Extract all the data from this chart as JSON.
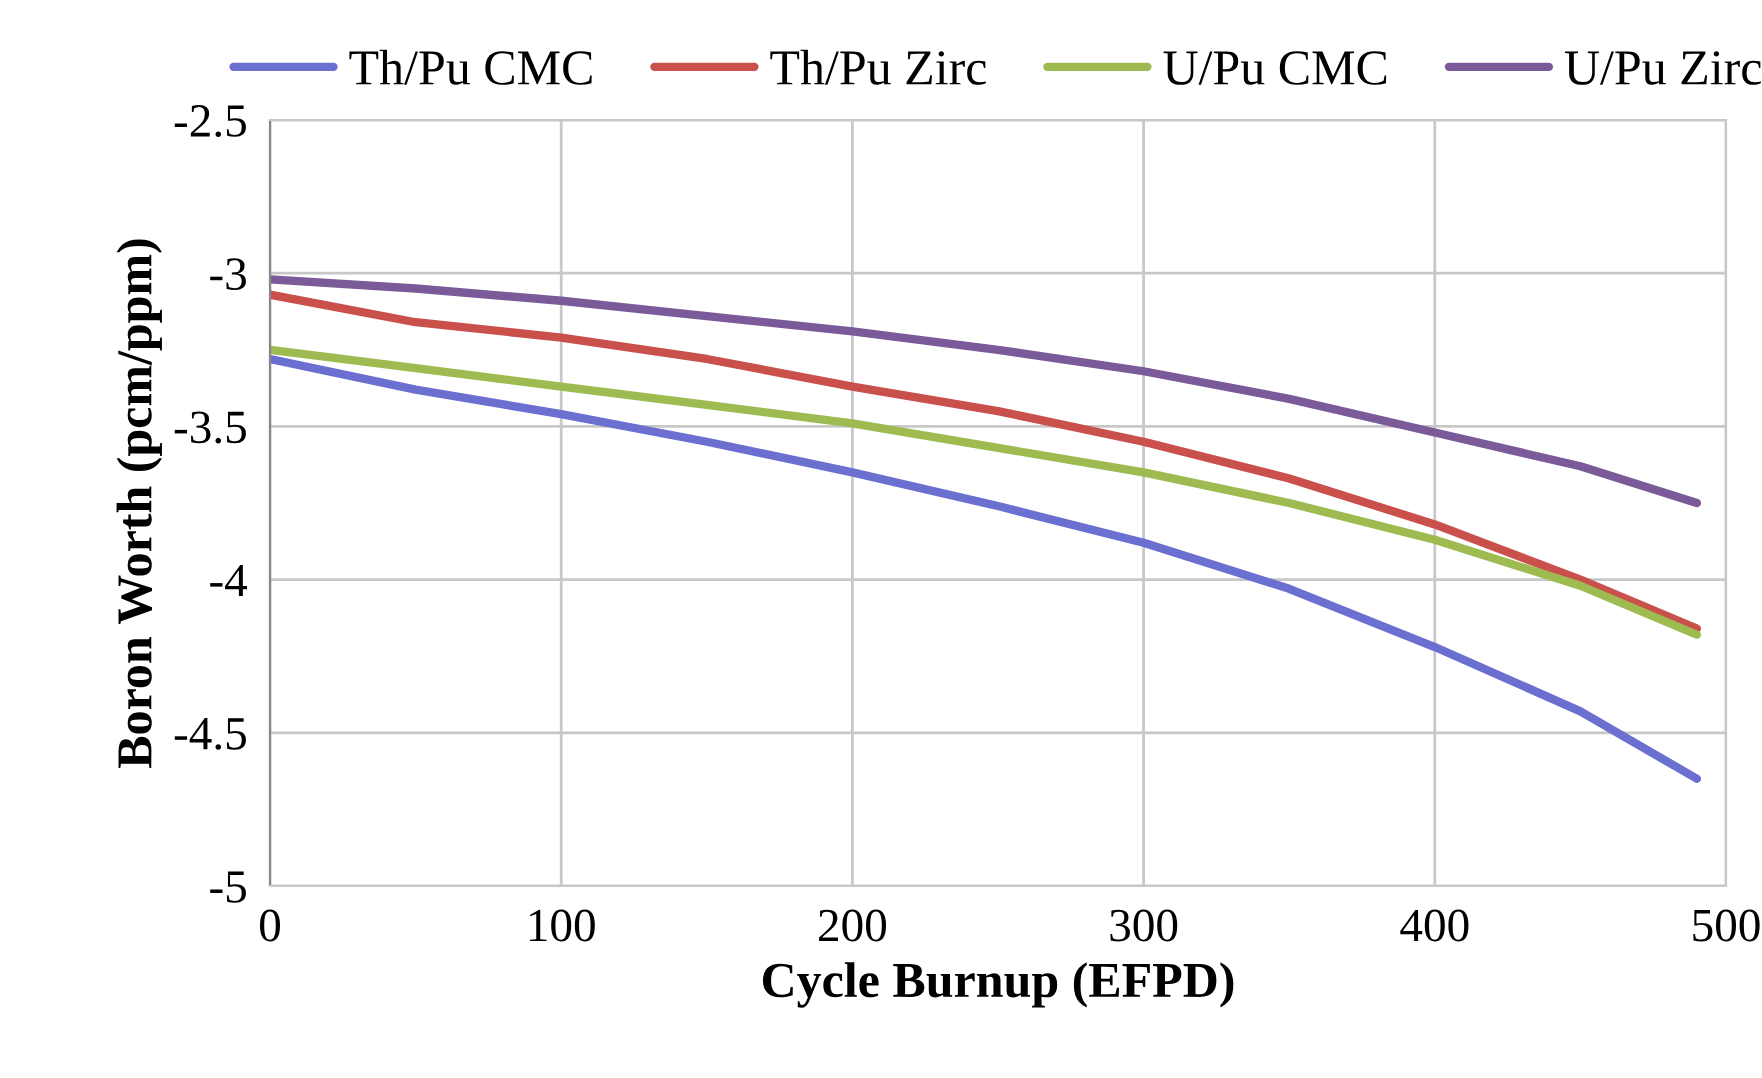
{
  "chart_data": {
    "type": "line",
    "xlabel": "Cycle Burnup (EFPD)",
    "ylabel": "Boron Worth (pcm/ppm)",
    "x": [
      0,
      50,
      100,
      150,
      200,
      250,
      300,
      350,
      400,
      450,
      490
    ],
    "series": [
      {
        "name": "Th/Pu CMC",
        "color": "#6b6fd0",
        "values": [
          -3.28,
          -3.38,
          -3.46,
          -3.55,
          -3.65,
          -3.76,
          -3.88,
          -4.03,
          -4.22,
          -4.43,
          -4.65
        ]
      },
      {
        "name": "Th/Pu Zirc",
        "color": "#c9504b",
        "values": [
          -3.07,
          -3.16,
          -3.21,
          -3.28,
          -3.37,
          -3.45,
          -3.55,
          -3.67,
          -3.82,
          -4.0,
          -4.16
        ]
      },
      {
        "name": "U/Pu CMC",
        "color": "#9dbb50",
        "values": [
          -3.25,
          -3.31,
          -3.37,
          -3.43,
          -3.49,
          -3.57,
          -3.65,
          -3.75,
          -3.87,
          -4.02,
          -4.18
        ]
      },
      {
        "name": "U/Pu Zirc",
        "color": "#7b5a9a",
        "values": [
          -3.02,
          -3.05,
          -3.09,
          -3.14,
          -3.19,
          -3.25,
          -3.32,
          -3.41,
          -3.52,
          -3.63,
          -3.75
        ]
      }
    ],
    "xlim": [
      0,
      500
    ],
    "xticks": [
      0,
      100,
      200,
      300,
      400,
      500
    ],
    "ylim": [
      -5,
      -2.5
    ],
    "yticks": [
      {
        "value": -5,
        "label": "-5"
      },
      {
        "value": -4.5,
        "label": "-4.5"
      },
      {
        "value": -4,
        "label": "-4"
      },
      {
        "value": -3.5,
        "label": "-3.5"
      },
      {
        "value": -3,
        "label": "-3"
      },
      {
        "value": -2.5,
        "label": "-2.5"
      }
    ],
    "grid": true,
    "legend": "top",
    "marker": "none",
    "line_style": "solid"
  }
}
